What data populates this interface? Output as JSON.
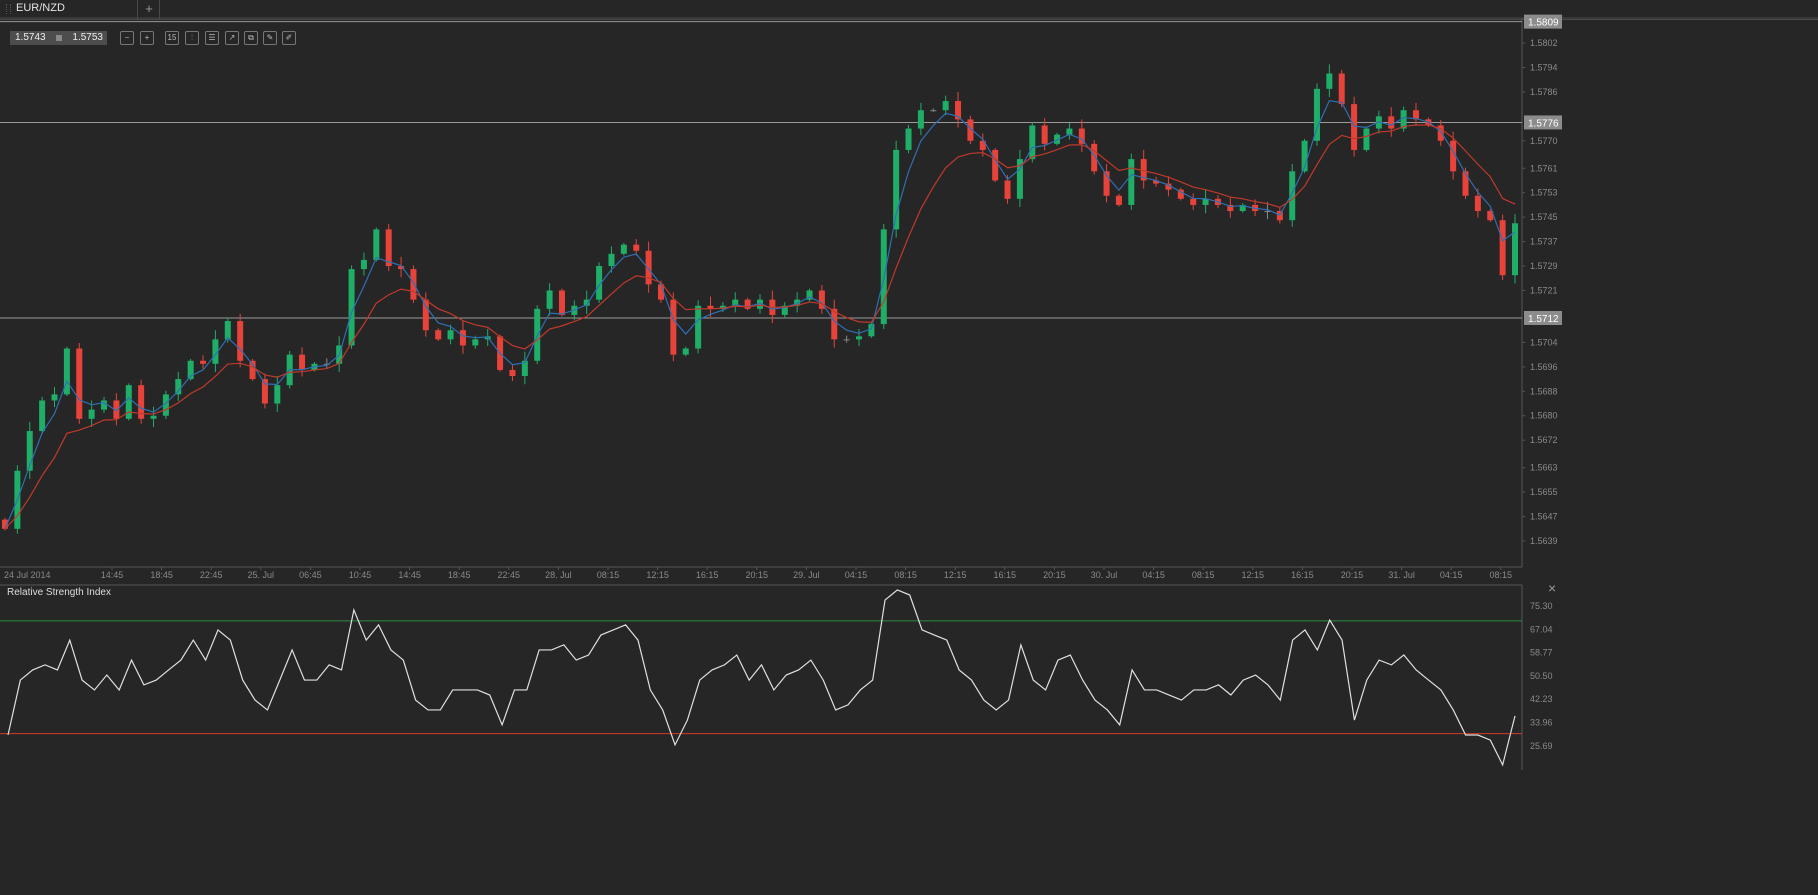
{
  "tabs": {
    "active": "EUR/NZD",
    "add_label": "+"
  },
  "quote": {
    "bid": "1.5743",
    "ask": "1.5753"
  },
  "toolbar": [
    {
      "icon": "zoom-out-icon",
      "glyph": "−"
    },
    {
      "icon": "zoom-in-icon",
      "glyph": "+"
    },
    {
      "icon": "timeframe-icon",
      "glyph": "15"
    },
    {
      "icon": "indicators-icon",
      "glyph": "⫶"
    },
    {
      "icon": "settings-sliders-icon",
      "glyph": "☰"
    },
    {
      "icon": "chart-type-icon",
      "glyph": "↗"
    },
    {
      "icon": "copy-icon",
      "glyph": "⧉"
    },
    {
      "icon": "draw-icon",
      "glyph": "✎"
    },
    {
      "icon": "pencil-icon",
      "glyph": "✐"
    }
  ],
  "rsi_panel": {
    "title": "Relative Strength Index",
    "close_label": "×"
  },
  "colors": {
    "up": "#1fae68",
    "down": "#e8433a",
    "ma_fast": "#2f6fb3",
    "ma_slow": "#c0392b",
    "rsi_line": "#e0e0e0",
    "overbought": "#2e8b3e",
    "oversold": "#d23a2e",
    "hline": "#9a9a9a"
  },
  "chart_data": [
    {
      "type": "candlestick",
      "title": "EUR/NZD",
      "interval": "hourly (approx.)",
      "ylim": [
        1.563,
        1.5812
      ],
      "y_ticks": [
        "1.5802",
        "1.5794",
        "1.5786",
        "1.5770",
        "1.5761",
        "1.5753",
        "1.5745",
        "1.5737",
        "1.5729",
        "1.5721",
        "1.5704",
        "1.5696",
        "1.5688",
        "1.5680",
        "1.5672",
        "1.5663",
        "1.5655",
        "1.5647",
        "1.5639"
      ],
      "price_levels": [
        "1.5809",
        "1.5776",
        "1.5712"
      ],
      "x_tick_labels": [
        "24 Jul 2014",
        "14:45",
        "18:45",
        "22:45",
        "25. Jul",
        "06:45",
        "10:45",
        "14:45",
        "18:45",
        "22:45",
        "28. Jul",
        "08:15",
        "12:15",
        "16:15",
        "20:15",
        "29. Jul",
        "04:15",
        "08:15",
        "12:15",
        "16:15",
        "20:15",
        "30. Jul",
        "04:15",
        "08:15",
        "12:15",
        "16:15",
        "20:15",
        "31. Jul",
        "04:15",
        "08:15"
      ],
      "moving_averages": [
        "fast (blue)",
        "slow (red)"
      ],
      "close": [
        1.5643,
        1.5662,
        1.5675,
        1.5685,
        1.5687,
        1.5702,
        1.5679,
        1.5682,
        1.5685,
        1.5679,
        1.569,
        1.5679,
        1.568,
        1.5687,
        1.5692,
        1.5698,
        1.5697,
        1.5705,
        1.5711,
        1.5698,
        1.5692,
        1.5684,
        1.569,
        1.57,
        1.5695,
        1.5697,
        1.5697,
        1.5703,
        1.5728,
        1.5731,
        1.5741,
        1.5729,
        1.5728,
        1.5718,
        1.5708,
        1.5705,
        1.5708,
        1.5703,
        1.5705,
        1.5706,
        1.5695,
        1.5693,
        1.5698,
        1.5715,
        1.5721,
        1.5713,
        1.5716,
        1.5718,
        1.5729,
        1.5733,
        1.5736,
        1.5734,
        1.5723,
        1.5718,
        1.57,
        1.5702,
        1.5716,
        1.5715,
        1.5716,
        1.5718,
        1.5715,
        1.5718,
        1.5713,
        1.5716,
        1.5718,
        1.5721,
        1.5715,
        1.5705,
        1.5705,
        1.5706,
        1.571,
        1.5741,
        1.5767,
        1.5774,
        1.578,
        1.578,
        1.5783,
        1.5777,
        1.577,
        1.5767,
        1.5757,
        1.5751,
        1.5764,
        1.5775,
        1.5769,
        1.5772,
        1.5774,
        1.5769,
        1.576,
        1.5752,
        1.5749,
        1.5764,
        1.5757,
        1.5756,
        1.5754,
        1.5751,
        1.5749,
        1.5751,
        1.5749,
        1.5747,
        1.5749,
        1.5747,
        1.5747,
        1.5744,
        1.576,
        1.577,
        1.5787,
        1.5792,
        1.5782,
        1.5767,
        1.5774,
        1.5778,
        1.5774,
        1.578,
        1.5777,
        1.5775,
        1.577,
        1.576,
        1.5752,
        1.5747,
        1.5744,
        1.5726,
        1.5743
      ]
    },
    {
      "type": "line",
      "title": "Relative Strength Index",
      "ylim": [
        17,
        82
      ],
      "y_ticks": [
        "75.30",
        "67.04",
        "58.77",
        "50.50",
        "42.23",
        "33.96",
        "25.69"
      ],
      "levels": [
        70,
        30
      ],
      "values": [
        29.5,
        49.0,
        52.6,
        54.4,
        52.6,
        63.2,
        49.0,
        45.5,
        50.8,
        45.5,
        56.1,
        47.3,
        49.0,
        52.6,
        56.1,
        63.2,
        56.1,
        66.8,
        63.2,
        49.0,
        41.9,
        38.4,
        49.0,
        59.7,
        49.0,
        49.0,
        54.4,
        52.6,
        73.9,
        63.2,
        68.6,
        59.7,
        56.1,
        41.9,
        38.4,
        38.4,
        45.5,
        45.5,
        45.5,
        43.7,
        33.1,
        45.5,
        45.5,
        59.7,
        59.7,
        61.5,
        56.1,
        57.9,
        65.0,
        66.8,
        68.6,
        63.2,
        45.5,
        38.4,
        26.0,
        34.8,
        49.0,
        52.6,
        54.4,
        57.9,
        49.0,
        54.4,
        45.5,
        50.8,
        52.6,
        56.1,
        49.0,
        38.4,
        40.2,
        45.5,
        49.0,
        77.4,
        81.0,
        79.2,
        66.8,
        65.0,
        63.2,
        52.6,
        49.0,
        41.9,
        38.4,
        41.9,
        61.5,
        49.0,
        45.5,
        56.1,
        57.9,
        49.0,
        41.9,
        38.4,
        33.1,
        52.6,
        45.5,
        45.5,
        43.7,
        41.9,
        45.5,
        45.5,
        47.3,
        43.7,
        49.0,
        50.8,
        47.3,
        41.9,
        63.2,
        66.8,
        59.7,
        70.3,
        63.2,
        34.8,
        49.0,
        56.1,
        54.4,
        57.9,
        52.6,
        49.0,
        45.5,
        38.4,
        29.5,
        29.5,
        27.7,
        18.9,
        36.3
      ]
    }
  ]
}
